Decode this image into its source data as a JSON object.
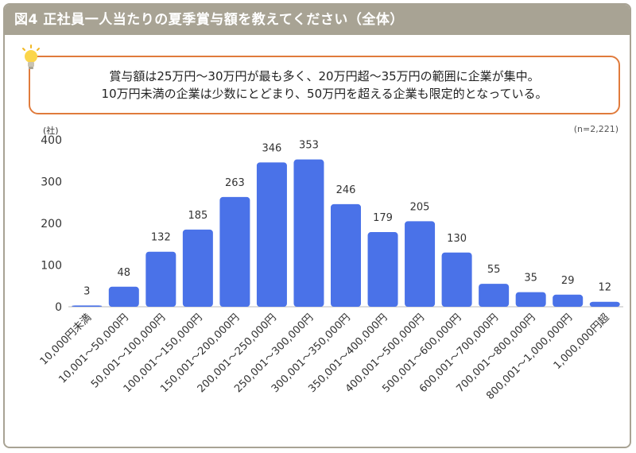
{
  "title": "図4 正社員一人当たりの夏季賞与額を教えてください（全体）",
  "callout": {
    "line1": "賞与額は25万円〜30万円が最も多く、20万円超〜35万円の範囲に企業が集中。",
    "line2": "10万円未満の企業は少数にとどまり、50万円を超える企業も限定的となっている。"
  },
  "icon": "lightbulb-icon",
  "colors": {
    "bar": "#4a72e8",
    "title_bar": "#a8a394",
    "callout_border": "#e07b3c"
  },
  "chart_data": {
    "type": "bar",
    "ylabel": "(社)",
    "note": "(n=2,221)",
    "ylim": [
      0,
      400
    ],
    "yticks": [
      0,
      100,
      200,
      300,
      400
    ],
    "grid": false,
    "categories": [
      "10,000円未満",
      "10,001〜50,000円",
      "50,001〜100,000円",
      "100,001〜150,000円",
      "150,001〜200,000円",
      "200,001〜250,000円",
      "250,001〜300,000円",
      "300,001〜350,000円",
      "350,001〜400,000円",
      "400,001〜500,000円",
      "500,001〜600,000円",
      "600,001〜700,000円",
      "700,001〜800,000円",
      "800,001〜1,000,000円",
      "1,000,000円超"
    ],
    "values": [
      3,
      48,
      132,
      185,
      263,
      346,
      353,
      246,
      179,
      205,
      130,
      55,
      35,
      29,
      12
    ]
  }
}
